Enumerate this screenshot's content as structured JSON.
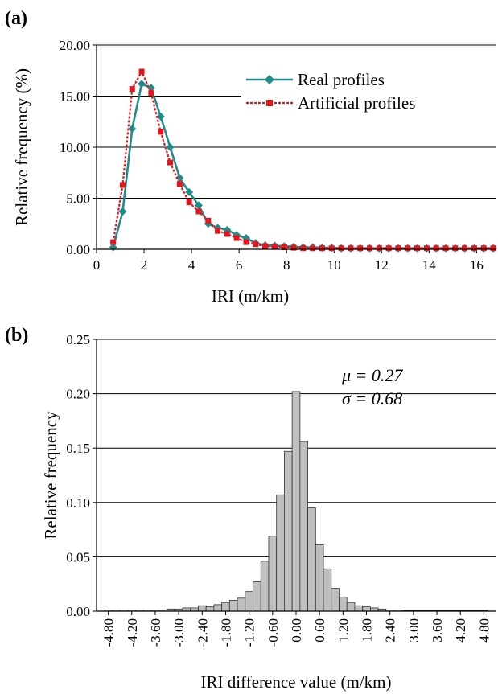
{
  "colors": {
    "real": "#1f8c8c",
    "artificial": "#e8141c",
    "bar_fill": "#bfbfbf",
    "bar_edge": "#333333"
  },
  "chart_data": [
    {
      "panel_label": "(a)",
      "type": "line",
      "xlabel": "IRI (m/km)",
      "ylabel": "Relative frequency (%)",
      "xlim": [
        0,
        16.8
      ],
      "ylim": [
        0,
        20
      ],
      "x_ticks": [
        "0",
        "2",
        "4",
        "6",
        "8",
        "10",
        "12",
        "14",
        "16"
      ],
      "y_ticks": [
        "0.00",
        "5.00",
        "10.00",
        "15.00",
        "20.00"
      ],
      "grid": "horizontal",
      "legend_position": "top-right",
      "series": [
        {
          "name": "Real profiles",
          "marker": "diamond",
          "x": [
            0.7,
            1.1,
            1.5,
            1.9,
            2.3,
            2.7,
            3.1,
            3.5,
            3.9,
            4.3,
            4.7,
            5.1,
            5.5,
            5.9,
            6.3,
            6.7,
            7.1,
            7.5,
            7.9,
            8.3,
            8.7,
            9.1,
            9.5,
            9.9,
            10.3,
            10.7,
            11.1,
            11.5,
            11.9,
            12.3,
            12.7,
            13.1,
            13.5,
            13.9,
            14.3,
            14.7,
            15.1,
            15.5,
            15.9,
            16.3,
            16.7
          ],
          "y": [
            0.2,
            3.7,
            11.8,
            16.2,
            15.8,
            13.0,
            10.0,
            7.0,
            5.6,
            4.3,
            2.5,
            2.1,
            1.9,
            1.4,
            1.1,
            0.6,
            0.4,
            0.35,
            0.3,
            0.25,
            0.2,
            0.2,
            0.15,
            0.15,
            0.1,
            0.1,
            0.1,
            0.1,
            0.1,
            0.1,
            0.1,
            0.1,
            0.1,
            0.1,
            0.1,
            0.1,
            0.1,
            0.1,
            0.1,
            0.1,
            0.1
          ]
        },
        {
          "name": "Artificial profiles",
          "marker": "square",
          "x": [
            0.7,
            1.1,
            1.5,
            1.9,
            2.3,
            2.7,
            3.1,
            3.5,
            3.9,
            4.3,
            4.7,
            5.1,
            5.5,
            5.9,
            6.3,
            6.7,
            7.1,
            7.5,
            7.9,
            8.3,
            8.7,
            9.1,
            9.5,
            9.9,
            10.3,
            10.7,
            11.1,
            11.5,
            11.9,
            12.3,
            12.7,
            13.1,
            13.5,
            13.9,
            14.3,
            14.7,
            15.1,
            15.5,
            15.9,
            16.3,
            16.7
          ],
          "y": [
            0.7,
            6.3,
            15.7,
            17.4,
            15.3,
            11.5,
            8.5,
            6.4,
            4.6,
            3.7,
            2.8,
            1.8,
            1.5,
            1.1,
            0.7,
            0.5,
            0.3,
            0.25,
            0.2,
            0.15,
            0.1,
            0.1,
            0.1,
            0.1,
            0.1,
            0.1,
            0.1,
            0.1,
            0.1,
            0.1,
            0.1,
            0.1,
            0.1,
            0.1,
            0.1,
            0.1,
            0.1,
            0.1,
            0.1,
            0.1,
            0.1
          ]
        }
      ]
    },
    {
      "panel_label": "(b)",
      "type": "bar",
      "xlabel": "IRI difference value (m/km)",
      "ylabel": "Relative frequency",
      "xlim": [
        -5.1,
        5.1
      ],
      "ylim": [
        0,
        0.25
      ],
      "x_ticks": [
        "-4.80",
        "-4.20",
        "-3.60",
        "-3.00",
        "-2.40",
        "-1.80",
        "-1.20",
        "-0.60",
        "0.00",
        "0.60",
        "1.20",
        "1.80",
        "2.40",
        "3.00",
        "3.60",
        "4.20",
        "4.80"
      ],
      "y_ticks": [
        "0.00",
        "0.05",
        "0.10",
        "0.15",
        "0.20",
        "0.25"
      ],
      "grid": "horizontal",
      "annotations": [
        "μ = 0.27",
        "σ = 0.68"
      ],
      "bin_width": 0.2,
      "bin_centers": [
        -4.8,
        -4.6,
        -4.4,
        -4.2,
        -4.0,
        -3.8,
        -3.6,
        -3.4,
        -3.2,
        -3.0,
        -2.8,
        -2.6,
        -2.4,
        -2.2,
        -2.0,
        -1.8,
        -1.6,
        -1.4,
        -1.2,
        -1.0,
        -0.8,
        -0.6,
        -0.4,
        -0.2,
        0.0,
        0.2,
        0.4,
        0.6,
        0.8,
        1.0,
        1.2,
        1.4,
        1.6,
        1.8,
        2.0,
        2.2,
        2.4,
        2.6,
        2.8,
        3.0,
        3.2,
        3.4,
        3.6,
        3.8,
        4.0,
        4.2,
        4.4,
        4.6,
        4.8
      ],
      "values": [
        0.001,
        0.001,
        0.001,
        0.001,
        0.001,
        0.001,
        0.001,
        0.001,
        0.002,
        0.002,
        0.003,
        0.003,
        0.005,
        0.004,
        0.006,
        0.008,
        0.01,
        0.012,
        0.018,
        0.027,
        0.046,
        0.069,
        0.107,
        0.147,
        0.202,
        0.156,
        0.095,
        0.061,
        0.039,
        0.021,
        0.013,
        0.008,
        0.005,
        0.004,
        0.003,
        0.002,
        0.001,
        0.001,
        0.0005,
        0.0005,
        0.0005,
        0.0005,
        0.0005,
        0.0005,
        0.0005,
        0.0005,
        0.0005,
        0.0005,
        0.0005
      ]
    }
  ]
}
